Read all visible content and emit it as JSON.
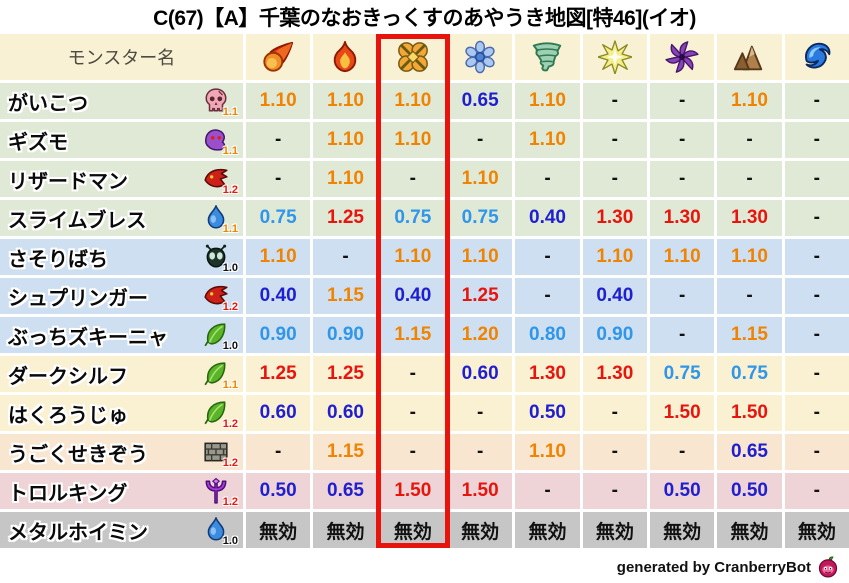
{
  "page": {
    "title": "C(67)【A】千葉のなおきっくすのあやうき地図[特46](イオ)",
    "footer_text": "generated by CranberryBot",
    "footer_icon": "cranberry-bot-icon"
  },
  "table": {
    "name_header": "モンスター名",
    "element_columns": [
      {
        "icon": "fire-icon",
        "highlighted": false
      },
      {
        "icon": "flame-icon",
        "highlighted": false
      },
      {
        "icon": "explosion-icon",
        "highlighted": true
      },
      {
        "icon": "ice-icon",
        "highlighted": false
      },
      {
        "icon": "wind-icon",
        "highlighted": false
      },
      {
        "icon": "light-icon",
        "highlighted": false
      },
      {
        "icon": "dark-icon",
        "highlighted": false
      },
      {
        "icon": "earth-icon",
        "highlighted": false
      },
      {
        "icon": "water-icon",
        "highlighted": false
      }
    ],
    "highlight_column_index": 2,
    "rows": [
      {
        "name": "がいこつ",
        "icon": "skull-icon",
        "level": "1.1",
        "band": "green",
        "values": [
          "1.10",
          "1.10",
          "1.10",
          "0.65",
          "1.10",
          "-",
          "-",
          "1.10",
          "-"
        ]
      },
      {
        "name": "ギズモ",
        "icon": "ghost-icon",
        "level": "1.1",
        "band": "green",
        "values": [
          "-",
          "1.10",
          "1.10",
          "-",
          "1.10",
          "-",
          "-",
          "-",
          "-"
        ]
      },
      {
        "name": "リザードマン",
        "icon": "dragon-icon",
        "level": "1.2",
        "band": "green",
        "values": [
          "-",
          "1.10",
          "-",
          "1.10",
          "-",
          "-",
          "-",
          "-",
          "-"
        ]
      },
      {
        "name": "スライムブレス",
        "icon": "slime-icon",
        "level": "1.1",
        "band": "green",
        "values": [
          "0.75",
          "1.25",
          "0.75",
          "0.75",
          "0.40",
          "1.30",
          "1.30",
          "1.30",
          "-"
        ]
      },
      {
        "name": "さそりばち",
        "icon": "bug-icon",
        "level": "1.0",
        "band": "blue",
        "values": [
          "1.10",
          "-",
          "1.10",
          "1.10",
          "-",
          "1.10",
          "1.10",
          "1.10",
          "-"
        ]
      },
      {
        "name": "シュプリンガー",
        "icon": "dragon-icon",
        "level": "1.2",
        "band": "blue",
        "values": [
          "0.40",
          "1.15",
          "0.40",
          "1.25",
          "-",
          "0.40",
          "-",
          "-",
          "-"
        ]
      },
      {
        "name": "ぶっちズキーニャ",
        "icon": "leaf-icon",
        "level": "1.0",
        "band": "blue",
        "values": [
          "0.90",
          "0.90",
          "1.15",
          "1.20",
          "0.80",
          "0.90",
          "-",
          "1.15",
          "-"
        ]
      },
      {
        "name": "ダークシルフ",
        "icon": "leaf-icon",
        "level": "1.1",
        "band": "cream",
        "values": [
          "1.25",
          "1.25",
          "-",
          "0.60",
          "1.30",
          "1.30",
          "0.75",
          "0.75",
          "-"
        ]
      },
      {
        "name": "はくろうじゅ",
        "icon": "leaf-icon",
        "level": "1.2",
        "band": "cream",
        "values": [
          "0.60",
          "0.60",
          "-",
          "-",
          "0.50",
          "-",
          "1.50",
          "1.50",
          "-"
        ]
      },
      {
        "name": "うごくせきぞう",
        "icon": "brick-icon",
        "level": "1.2",
        "band": "peach",
        "values": [
          "-",
          "1.15",
          "-",
          "-",
          "1.10",
          "-",
          "-",
          "0.65",
          "-"
        ]
      },
      {
        "name": "トロルキング",
        "icon": "trident-icon",
        "level": "1.2",
        "band": "pink",
        "values": [
          "0.50",
          "0.65",
          "1.50",
          "1.50",
          "-",
          "-",
          "0.50",
          "0.50",
          "-"
        ]
      },
      {
        "name": "メタルホイミン",
        "icon": "slime-icon",
        "level": "1.0",
        "band": "gray",
        "values": [
          "無効",
          "無効",
          "無効",
          "無効",
          "無効",
          "無効",
          "無効",
          "無効",
          "無効"
        ]
      }
    ]
  },
  "chart_data": {
    "type": "table",
    "columns": [
      "monster-name",
      "fire-icon",
      "flame-icon",
      "explosion-icon",
      "ice-icon",
      "wind-icon",
      "light-icon",
      "dark-icon",
      "earth-icon",
      "water-icon"
    ],
    "rows": [
      [
        "がいこつ",
        "1.10",
        "1.10",
        "1.10",
        "0.65",
        "1.10",
        "-",
        "-",
        "1.10",
        "-"
      ],
      [
        "ギズモ",
        "-",
        "1.10",
        "1.10",
        "-",
        "1.10",
        "-",
        "-",
        "-",
        "-"
      ],
      [
        "リザードマン",
        "-",
        "1.10",
        "-",
        "1.10",
        "-",
        "-",
        "-",
        "-",
        "-"
      ],
      [
        "スライムブレス",
        "0.75",
        "1.25",
        "0.75",
        "0.75",
        "0.40",
        "1.30",
        "1.30",
        "1.30",
        "-"
      ],
      [
        "さそりばち",
        "1.10",
        "-",
        "1.10",
        "1.10",
        "-",
        "1.10",
        "1.10",
        "1.10",
        "-"
      ],
      [
        "シュプリンガー",
        "0.40",
        "1.15",
        "0.40",
        "1.25",
        "-",
        "0.40",
        "-",
        "-",
        "-"
      ],
      [
        "ぶっちズキーニャ",
        "0.90",
        "0.90",
        "1.15",
        "1.20",
        "0.80",
        "0.90",
        "-",
        "1.15",
        "-"
      ],
      [
        "ダークシルフ",
        "1.25",
        "1.25",
        "-",
        "0.60",
        "1.30",
        "1.30",
        "0.75",
        "0.75",
        "-"
      ],
      [
        "はくろうじゅ",
        "0.60",
        "0.60",
        "-",
        "-",
        "0.50",
        "-",
        "1.50",
        "1.50",
        "-"
      ],
      [
        "うごくせきぞう",
        "-",
        "1.15",
        "-",
        "-",
        "1.10",
        "-",
        "-",
        "0.65",
        "-"
      ],
      [
        "トロルキング",
        "0.50",
        "0.65",
        "1.50",
        "1.50",
        "-",
        "-",
        "0.50",
        "0.50",
        "-"
      ],
      [
        "メタルホイミン",
        "無効",
        "無効",
        "無効",
        "無効",
        "無効",
        "無効",
        "無効",
        "無効",
        "無効"
      ]
    ],
    "title": "C(67)【A】千葉のなおきっくすのあやうき地図[特46](イオ)",
    "highlighted_column": "explosion-icon"
  },
  "palette": {
    "header_band": "#f8f1d4",
    "band_green": "#dfe9d5",
    "band_blue": "#cddff1",
    "band_cream": "#faf0d2",
    "band_peach": "#f9e6d0",
    "band_pink": "#eed3d7",
    "band_gray": "#c6c6c6",
    "value_orange": "#f08300",
    "value_red": "#e8150d",
    "value_lightblue": "#2f96ea",
    "value_navy": "#1f1fd0",
    "value_black": "#111111",
    "highlight_box": "#e8130c",
    "level_colors": {
      "1.0": "#111111",
      "1.1": "#f08300",
      "1.2": "#e8150d"
    }
  }
}
